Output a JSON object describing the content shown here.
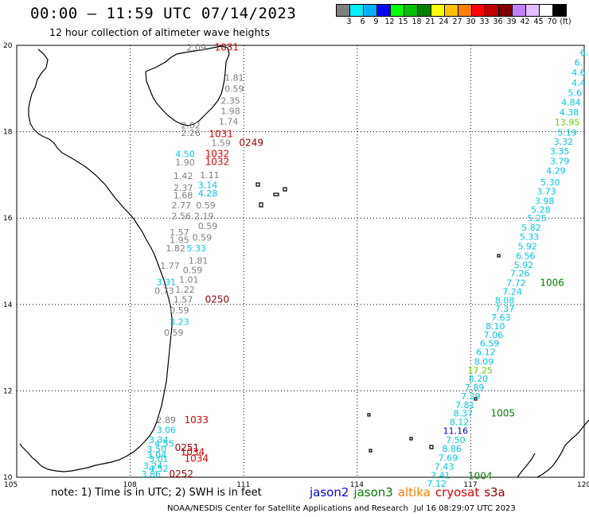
{
  "header": {
    "title": "00:00 — 11:59 UTC 07/14/2023",
    "subtitle": "12 hour collection of altimeter wave heights"
  },
  "legend": {
    "colors": [
      "#7f7f7f",
      "#00f0ff",
      "#00b0ff",
      "#0000ff",
      "#00ff00",
      "#00c000",
      "#008000",
      "#ffff00",
      "#ffc000",
      "#ff8000",
      "#ff0000",
      "#c00000",
      "#800000",
      "#c080ff",
      "#e0c0ff",
      "#ffffff",
      "#000000"
    ],
    "labels": [
      "3",
      "6",
      "9",
      "12",
      "15",
      "18",
      "21",
      "24",
      "27",
      "30",
      "33",
      "36",
      "39",
      "42",
      "45",
      "70",
      "(ft)"
    ]
  },
  "map": {
    "lon_ticks": [
      "105",
      "108",
      "111",
      "114",
      "117",
      "120"
    ],
    "lat_ticks": [
      "20",
      "18",
      "16",
      "14",
      "12",
      "10"
    ],
    "lon_range": [
      105,
      120
    ],
    "lat_range": [
      10,
      20
    ],
    "wave_labels": [
      {
        "t": "2.09",
        "c": "#7f7f7f",
        "lon": 109.75,
        "lat": 19.95
      },
      {
        "t": "1031",
        "c": "#e00000",
        "lon": 110.55,
        "lat": 19.95
      },
      {
        "t": "1.81",
        "c": "#7f7f7f",
        "lon": 110.75,
        "lat": 19.25
      },
      {
        "t": "0.59",
        "c": "#7f7f7f",
        "lon": 110.75,
        "lat": 19.0
      },
      {
        "t": "2.35",
        "c": "#7f7f7f",
        "lon": 110.65,
        "lat": 18.72
      },
      {
        "t": "1.98",
        "c": "#7f7f7f",
        "lon": 110.65,
        "lat": 18.48
      },
      {
        "t": "1.74",
        "c": "#7f7f7f",
        "lon": 110.6,
        "lat": 18.24
      },
      {
        "t": "2.02",
        "c": "#7f7f7f",
        "lon": 109.6,
        "lat": 18.15
      },
      {
        "t": "2.26",
        "c": "#7f7f7f",
        "lon": 109.6,
        "lat": 17.97
      },
      {
        "t": "1031",
        "c": "#e00000",
        "lon": 110.4,
        "lat": 17.95
      },
      {
        "t": "1.59",
        "c": "#7f7f7f",
        "lon": 110.4,
        "lat": 17.74
      },
      {
        "t": "0249",
        "c": "#900000",
        "lon": 111.2,
        "lat": 17.74
      },
      {
        "t": "4.50",
        "c": "#00c8e0",
        "lon": 109.45,
        "lat": 17.49
      },
      {
        "t": "1032",
        "c": "#e00000",
        "lon": 110.3,
        "lat": 17.49
      },
      {
        "t": "1.90",
        "c": "#7f7f7f",
        "lon": 109.45,
        "lat": 17.29
      },
      {
        "t": "1032",
        "c": "#e00000",
        "lon": 110.3,
        "lat": 17.3
      },
      {
        "t": "1.42",
        "c": "#7f7f7f",
        "lon": 109.4,
        "lat": 16.98
      },
      {
        "t": "1.11",
        "c": "#7f7f7f",
        "lon": 110.1,
        "lat": 17.0
      },
      {
        "t": "2.37",
        "c": "#7f7f7f",
        "lon": 109.4,
        "lat": 16.7
      },
      {
        "t": "3.14",
        "c": "#00c8e0",
        "lon": 110.05,
        "lat": 16.77
      },
      {
        "t": "1.68",
        "c": "#7f7f7f",
        "lon": 109.4,
        "lat": 16.53
      },
      {
        "t": "4.28",
        "c": "#00c8e0",
        "lon": 110.05,
        "lat": 16.57
      },
      {
        "t": "2.77",
        "c": "#7f7f7f",
        "lon": 109.35,
        "lat": 16.3
      },
      {
        "t": "0.59",
        "c": "#7f7f7f",
        "lon": 110.0,
        "lat": 16.3
      },
      {
        "t": "2.56",
        "c": "#7f7f7f",
        "lon": 109.35,
        "lat": 16.05
      },
      {
        "t": "2.19",
        "c": "#7f7f7f",
        "lon": 109.95,
        "lat": 16.05
      },
      {
        "t": "0.59",
        "c": "#7f7f7f",
        "lon": 110.05,
        "lat": 15.82
      },
      {
        "t": "1.57",
        "c": "#7f7f7f",
        "lon": 109.3,
        "lat": 15.67
      },
      {
        "t": "0.59",
        "c": "#7f7f7f",
        "lon": 109.9,
        "lat": 15.55
      },
      {
        "t": "1.95",
        "c": "#7f7f7f",
        "lon": 109.3,
        "lat": 15.5
      },
      {
        "t": "1.82",
        "c": "#7f7f7f",
        "lon": 109.2,
        "lat": 15.3
      },
      {
        "t": "5.33",
        "c": "#00c8e0",
        "lon": 109.75,
        "lat": 15.3
      },
      {
        "t": "1.81",
        "c": "#7f7f7f",
        "lon": 109.8,
        "lat": 15.02
      },
      {
        "t": "1.77",
        "c": "#7f7f7f",
        "lon": 109.05,
        "lat": 14.9
      },
      {
        "t": "0.59",
        "c": "#7f7f7f",
        "lon": 109.65,
        "lat": 14.8
      },
      {
        "t": "1.01",
        "c": "#7f7f7f",
        "lon": 109.55,
        "lat": 14.58
      },
      {
        "t": "3.31",
        "c": "#00c8e0",
        "lon": 108.95,
        "lat": 14.52
      },
      {
        "t": "0.73",
        "c": "#7f7f7f",
        "lon": 108.9,
        "lat": 14.32
      },
      {
        "t": "1.22",
        "c": "#7f7f7f",
        "lon": 109.45,
        "lat": 14.35
      },
      {
        "t": "1.57",
        "c": "#7f7f7f",
        "lon": 109.4,
        "lat": 14.12
      },
      {
        "t": "0250",
        "c": "#900000",
        "lon": 110.3,
        "lat": 14.12
      },
      {
        "t": "0.59",
        "c": "#7f7f7f",
        "lon": 109.3,
        "lat": 13.87
      },
      {
        "t": "3.23",
        "c": "#00c8e0",
        "lon": 109.3,
        "lat": 13.6
      },
      {
        "t": "0.59",
        "c": "#7f7f7f",
        "lon": 109.15,
        "lat": 13.35
      },
      {
        "t": "2.89",
        "c": "#7f7f7f",
        "lon": 108.95,
        "lat": 11.33
      },
      {
        "t": "1033",
        "c": "#e00000",
        "lon": 109.75,
        "lat": 11.33
      },
      {
        "t": "3.06",
        "c": "#00c8e0",
        "lon": 108.95,
        "lat": 11.1
      },
      {
        "t": "3.34",
        "c": "#00c8e0",
        "lon": 108.75,
        "lat": 10.87
      },
      {
        "t": "4.55",
        "c": "#00c8e0",
        "lon": 108.9,
        "lat": 10.78
      },
      {
        "t": "3.50",
        "c": "#00c8e0",
        "lon": 108.7,
        "lat": 10.65
      },
      {
        "t": "0251",
        "c": "#900000",
        "lon": 109.5,
        "lat": 10.68
      },
      {
        "t": "3.04",
        "c": "#00c8e0",
        "lon": 108.7,
        "lat": 10.52
      },
      {
        "t": "1034",
        "c": "#e00000",
        "lon": 109.65,
        "lat": 10.58
      },
      {
        "t": "3.01",
        "c": "#00c8e0",
        "lon": 108.75,
        "lat": 10.42
      },
      {
        "t": "1034",
        "c": "#e00000",
        "lon": 109.75,
        "lat": 10.43
      },
      {
        "t": "3.24",
        "c": "#00c8e0",
        "lon": 108.6,
        "lat": 10.27
      },
      {
        "t": "4.52",
        "c": "#00c8e0",
        "lon": 108.75,
        "lat": 10.2
      },
      {
        "t": "3.86",
        "c": "#00c8e0",
        "lon": 108.55,
        "lat": 10.07
      },
      {
        "t": "0252",
        "c": "#900000",
        "lon": 109.35,
        "lat": 10.07
      },
      {
        "t": "6.",
        "c": "#00c8e0",
        "lon": 120.0,
        "lat": 19.83
      },
      {
        "t": "6.",
        "c": "#00c8e0",
        "lon": 119.85,
        "lat": 19.6
      },
      {
        "t": "4.6",
        "c": "#00c8e0",
        "lon": 119.85,
        "lat": 19.37
      },
      {
        "t": "4.4",
        "c": "#00c8e0",
        "lon": 119.85,
        "lat": 19.13
      },
      {
        "t": "5.6",
        "c": "#00c8e0",
        "lon": 119.75,
        "lat": 18.9
      },
      {
        "t": "4.84",
        "c": "#00c8e0",
        "lon": 119.65,
        "lat": 18.68
      },
      {
        "t": "4.38",
        "c": "#00c8e0",
        "lon": 119.6,
        "lat": 18.45
      },
      {
        "t": "13.95",
        "c": "#60d000",
        "lon": 119.55,
        "lat": 18.22
      },
      {
        "t": "5.19",
        "c": "#00c8e0",
        "lon": 119.55,
        "lat": 17.98
      },
      {
        "t": "3.32",
        "c": "#00c8e0",
        "lon": 119.45,
        "lat": 17.77
      },
      {
        "t": "3.35",
        "c": "#00c8e0",
        "lon": 119.35,
        "lat": 17.55
      },
      {
        "t": "3.79",
        "c": "#00c8e0",
        "lon": 119.35,
        "lat": 17.32
      },
      {
        "t": "4.29",
        "c": "#00c8e0",
        "lon": 119.25,
        "lat": 17.1
      },
      {
        "t": "5.30",
        "c": "#00c8e0",
        "lon": 119.1,
        "lat": 16.83
      },
      {
        "t": "3.73",
        "c": "#00c8e0",
        "lon": 119.0,
        "lat": 16.62
      },
      {
        "t": "3.98",
        "c": "#00c8e0",
        "lon": 118.95,
        "lat": 16.4
      },
      {
        "t": "5.28",
        "c": "#00c8e0",
        "lon": 118.85,
        "lat": 16.2
      },
      {
        "t": "5.25",
        "c": "#00c8e0",
        "lon": 118.75,
        "lat": 16.0
      },
      {
        "t": "5.82",
        "c": "#00c8e0",
        "lon": 118.6,
        "lat": 15.78
      },
      {
        "t": "5.33",
        "c": "#00c8e0",
        "lon": 118.55,
        "lat": 15.57
      },
      {
        "t": "5.92",
        "c": "#00c8e0",
        "lon": 118.5,
        "lat": 15.35
      },
      {
        "t": "6.56",
        "c": "#00c8e0",
        "lon": 118.45,
        "lat": 15.13
      },
      {
        "t": "5.92",
        "c": "#00c8e0",
        "lon": 118.4,
        "lat": 14.92
      },
      {
        "t": "7.26",
        "c": "#00c8e0",
        "lon": 118.3,
        "lat": 14.72
      },
      {
        "t": "7.72",
        "c": "#00c8e0",
        "lon": 118.2,
        "lat": 14.5
      },
      {
        "t": "1006",
        "c": "#008000",
        "lon": 119.15,
        "lat": 14.5
      },
      {
        "t": "7.24",
        "c": "#00c8e0",
        "lon": 118.1,
        "lat": 14.3
      },
      {
        "t": "8.08",
        "c": "#00c8e0",
        "lon": 117.9,
        "lat": 14.1
      },
      {
        "t": "7.37",
        "c": "#00c8e0",
        "lon": 117.9,
        "lat": 13.9
      },
      {
        "t": "7.63",
        "c": "#00c8e0",
        "lon": 117.8,
        "lat": 13.7
      },
      {
        "t": "8.10",
        "c": "#00c8e0",
        "lon": 117.65,
        "lat": 13.5
      },
      {
        "t": "7.06",
        "c": "#00c8e0",
        "lon": 117.6,
        "lat": 13.3
      },
      {
        "t": "6.59",
        "c": "#00c8e0",
        "lon": 117.5,
        "lat": 13.1
      },
      {
        "t": "6.12",
        "c": "#00c8e0",
        "lon": 117.4,
        "lat": 12.9
      },
      {
        "t": "8.09",
        "c": "#00c8e0",
        "lon": 117.35,
        "lat": 12.68
      },
      {
        "t": "17.25",
        "c": "#60d000",
        "lon": 117.25,
        "lat": 12.48
      },
      {
        "t": "8.20",
        "c": "#00c8e0",
        "lon": 117.2,
        "lat": 12.28
      },
      {
        "t": "7.89",
        "c": "#00c8e0",
        "lon": 117.1,
        "lat": 12.08
      },
      {
        "t": "7.29",
        "c": "#00c8e0",
        "lon": 117.0,
        "lat": 11.88
      },
      {
        "t": "7.81",
        "c": "#00c8e0",
        "lon": 116.85,
        "lat": 11.68
      },
      {
        "t": "8.37",
        "c": "#00c8e0",
        "lon": 116.8,
        "lat": 11.48
      },
      {
        "t": "1005",
        "c": "#008000",
        "lon": 117.85,
        "lat": 11.48
      },
      {
        "t": "8.12",
        "c": "#00c8e0",
        "lon": 116.7,
        "lat": 11.28
      },
      {
        "t": "11.16",
        "c": "#0000d0",
        "lon": 116.6,
        "lat": 11.08
      },
      {
        "t": "7.50",
        "c": "#00c8e0",
        "lon": 116.6,
        "lat": 10.87
      },
      {
        "t": "8.86",
        "c": "#00c8e0",
        "lon": 116.5,
        "lat": 10.66
      },
      {
        "t": "7.69",
        "c": "#00c8e0",
        "lon": 116.4,
        "lat": 10.45
      },
      {
        "t": "7.43",
        "c": "#00c8e0",
        "lon": 116.3,
        "lat": 10.25
      },
      {
        "t": "7.41",
        "c": "#00c8e0",
        "lon": 116.2,
        "lat": 10.05
      },
      {
        "t": "1004",
        "c": "#008000",
        "lon": 117.25,
        "lat": 10.03
      },
      {
        "t": "7.12",
        "c": "#00c8e0",
        "lon": 116.1,
        "lat": 9.85
      }
    ]
  },
  "footer": {
    "note": "note:  1) Time is in UTC;  2) SWH is in feet",
    "satellites": [
      {
        "name": "jason2",
        "color": "#0000ff"
      },
      {
        "name": "jason3",
        "color": "#008000"
      },
      {
        "name": "altika",
        "color": "#ff8000"
      },
      {
        "name": "cryosat",
        "color": "#e00000"
      },
      {
        "name": "s3a",
        "color": "#a00000"
      }
    ],
    "credit": "NOAA/NESDIS Center for Satellite Applications and Research",
    "timestamp": "Jul 16 08:29:07 UTC 2023"
  }
}
